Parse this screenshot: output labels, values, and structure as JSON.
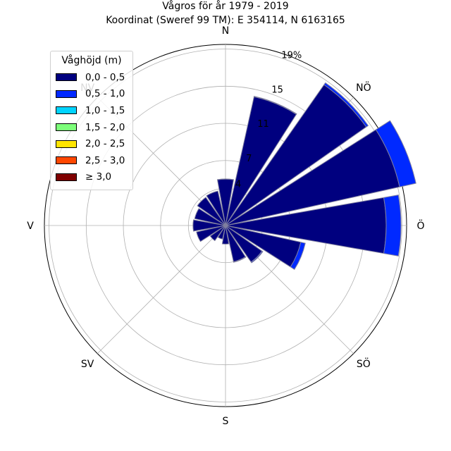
{
  "chart_data": {
    "type": "wind-rose",
    "title": "Vågros för år 1979 - 2019",
    "subtitle": "Koordinat (Sweref 99 TM): E 354114, N 6163165",
    "directions": [
      "N",
      "NÖ",
      "Ö",
      "SÖ",
      "S",
      "SV",
      "V",
      "NV"
    ],
    "radial_ticks": [
      "4",
      "7",
      "11",
      "15",
      "19%"
    ],
    "radial_tick_values": [
      4,
      7,
      11,
      15,
      19
    ],
    "radial_max": 19.5,
    "grid": true,
    "legend_title": "Våghöjd (m)",
    "legend_placement": "upper-left",
    "bins": [
      {
        "label": "0,0 - 0,5",
        "color": "#00007f"
      },
      {
        "label": "0,5 - 1,0",
        "color": "#0029ff"
      },
      {
        "label": "1,0 - 1,5",
        "color": "#00d4ff"
      },
      {
        "label": "1,5 - 2,0",
        "color": "#7dff7a"
      },
      {
        "label": "2,0 - 2,5",
        "color": "#ffe500"
      },
      {
        "label": "2,5 - 3,0",
        "color": "#ff4700"
      },
      {
        "label": "≥ 3,0",
        "color": "#7f0000"
      }
    ],
    "sector_directions_deg": [
      0,
      22.5,
      45,
      67.5,
      90,
      112.5,
      135,
      157.5,
      180,
      202.5,
      225,
      247.5,
      270,
      292.5,
      315,
      337.5
    ],
    "sector_width_deg": 20,
    "stacked_percent": [
      [
        5.0,
        0.02
      ],
      [
        14.2,
        0.05
      ],
      [
        18.5,
        0.25
      ],
      [
        19.2,
        1.8
      ],
      [
        17.3,
        1.6
      ],
      [
        8.3,
        0.5
      ],
      [
        4.8,
        0.1
      ],
      [
        4.0,
        0.05
      ],
      [
        2.0,
        0.0
      ],
      [
        1.5,
        0.0
      ],
      [
        2.0,
        0.0
      ],
      [
        3.2,
        0.0
      ],
      [
        3.5,
        0.0
      ],
      [
        3.4,
        0.0
      ],
      [
        3.7,
        0.0
      ],
      [
        3.8,
        0.0
      ]
    ]
  }
}
